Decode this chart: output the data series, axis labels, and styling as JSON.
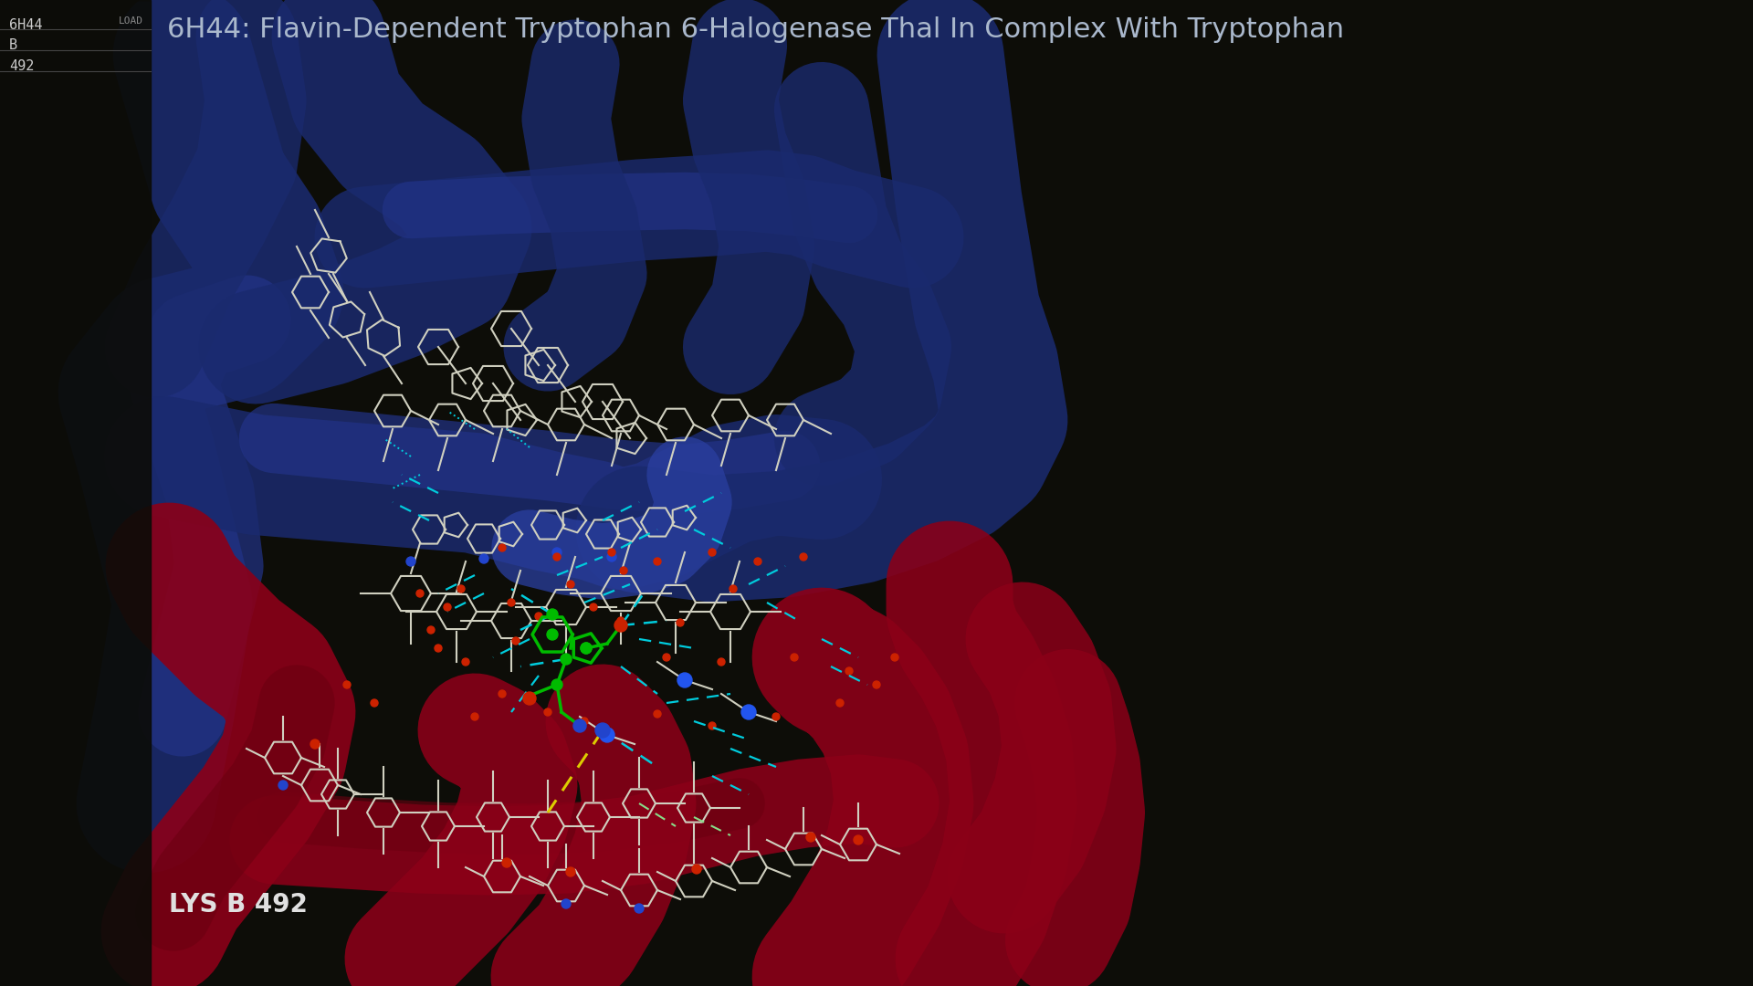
{
  "title": "6H44: Flavin-Dependent Tryptophan 6-Halogenase Thal In Complex With Tryptophan",
  "label_bottom_left": "LYS B 492",
  "panel_labels": [
    "6H44",
    "B",
    "492"
  ],
  "load_text": "LOAD",
  "bg_color": "#0d0d08",
  "panel_bg": "#0d0d08",
  "title_color": "#aab8cc",
  "label_color": "#e0e0e0",
  "panel_text_color": "#cccccc",
  "separator_color": "#555555"
}
